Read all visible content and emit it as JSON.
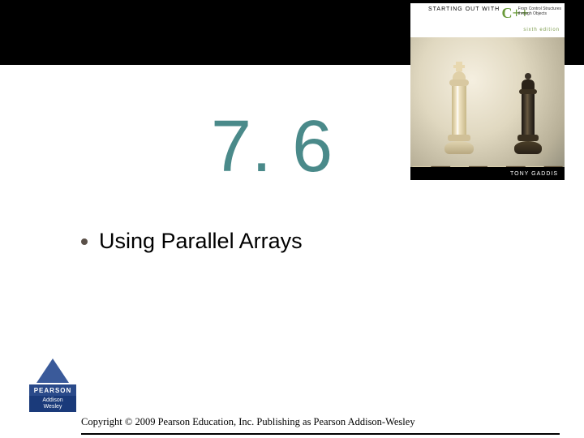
{
  "book": {
    "starting": "STARTING OUT WITH",
    "language": "C++",
    "subtitle1": "From Control Structures",
    "subtitle2": "through Objects",
    "edition": "sixth edition",
    "author": "TONY GADDIS"
  },
  "section": {
    "number": "7. 6",
    "number_color": "#4a8a8a",
    "number_fontsize": 90
  },
  "bullet": {
    "text": "Using Parallel Arrays",
    "fontsize": 27,
    "dot_color": "#5a5048"
  },
  "publisher": {
    "name": "PEARSON",
    "imprint1": "Addison",
    "imprint2": "Wesley"
  },
  "copyright": "Copyright © 2009 Pearson Education, Inc. Publishing as Pearson Addison-Wesley",
  "colors": {
    "top_bar": "#000000",
    "background": "#ffffff"
  }
}
